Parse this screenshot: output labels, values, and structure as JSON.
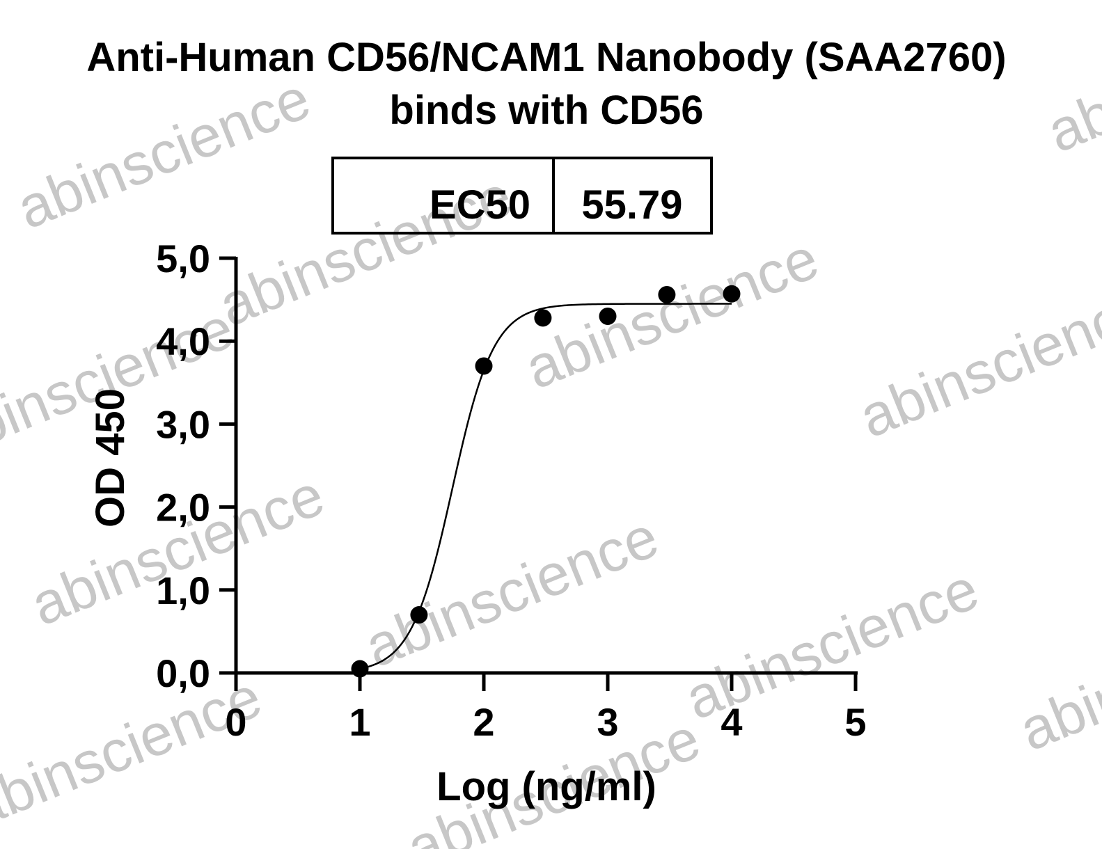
{
  "chart_data": {
    "type": "scatter",
    "title_line1": "Anti-Human CD56/NCAM1 Nanobody (SAA2760)",
    "title_line2": "binds with CD56",
    "xlabel": "Log (ng/ml)",
    "ylabel": "OD 450",
    "xlim": [
      0,
      5
    ],
    "ylim": [
      0,
      5
    ],
    "x_ticks": [
      "0",
      "1",
      "2",
      "3",
      "4",
      "5"
    ],
    "y_ticks": [
      "0,0",
      "1,0",
      "2,0",
      "3,0",
      "4,0",
      "5,0"
    ],
    "grid": false,
    "ec50_label": "EC50",
    "ec50_value": "55.79",
    "points": [
      {
        "x": 1.0,
        "y": 0.05
      },
      {
        "x": 1.477,
        "y": 0.7
      },
      {
        "x": 2.0,
        "y": 3.7
      },
      {
        "x": 2.477,
        "y": 4.28
      },
      {
        "x": 3.0,
        "y": 4.3
      },
      {
        "x": 3.477,
        "y": 4.56
      },
      {
        "x": 4.0,
        "y": 4.57
      }
    ],
    "fit": {
      "model": "four-parameter logistic",
      "bottom": 0.0,
      "top": 4.45,
      "log_ec50": 1.7465,
      "hill_slope": 2.6,
      "x_range": [
        1.0,
        4.0
      ]
    },
    "watermark": "abinscience"
  }
}
